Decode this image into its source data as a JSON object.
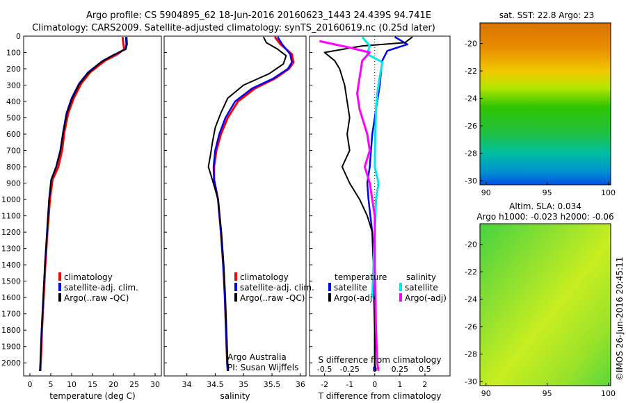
{
  "header": {
    "title_line1": "Argo profile: CS 5904895_62 18-Jun-2016 20160623_1443 24.439S 94.741E",
    "title_line2": "Climatology: CARS2009. Satellite-adjusted climatology: synTS_20160619.nc (0.25d later)"
  },
  "credit": "©IMOS 26-Jun-2016 20:45:11",
  "colors": {
    "climatology": "#ff0000",
    "satellite": "#0000ff",
    "argo": "#000000",
    "sal_satellite": "#00e5ee",
    "sal_argo": "#ff00ff"
  },
  "chart_data": [
    {
      "type": "line",
      "name": "temperature-profile",
      "xlabel": "temperature (deg C)",
      "ylabel": "",
      "xlim": [
        -1.5,
        31.5
      ],
      "ylim": [
        2080,
        0
      ],
      "xticks": [
        0,
        5,
        10,
        15,
        20,
        25,
        30
      ],
      "yticks": [
        0,
        100,
        200,
        300,
        400,
        500,
        600,
        700,
        800,
        900,
        1000,
        1100,
        1200,
        1300,
        1400,
        1500,
        1600,
        1700,
        1800,
        1900,
        2000
      ],
      "legend": [
        "climatology",
        "satellite-adj. clim.",
        "Argo(..raw -QC)"
      ],
      "series": [
        {
          "name": "climatology",
          "points": [
            [
              22.2,
              5
            ],
            [
              22.4,
              50
            ],
            [
              22.6,
              80
            ],
            [
              21.0,
              110
            ],
            [
              18.0,
              150
            ],
            [
              14.5,
              220
            ],
            [
              12.3,
              290
            ],
            [
              10.5,
              380
            ],
            [
              9.2,
              470
            ],
            [
              8.3,
              580
            ],
            [
              7.7,
              700
            ],
            [
              6.8,
              800
            ],
            [
              5.4,
              880
            ],
            [
              4.8,
              1000
            ],
            [
              4.2,
              1200
            ],
            [
              3.7,
              1400
            ],
            [
              3.3,
              1600
            ],
            [
              2.9,
              1800
            ],
            [
              2.6,
              2000
            ],
            [
              2.5,
              2050
            ]
          ]
        },
        {
          "name": "satellite-adj. clim.",
          "points": [
            [
              23.0,
              5
            ],
            [
              23.1,
              50
            ],
            [
              22.9,
              80
            ],
            [
              20.5,
              110
            ],
            [
              17.5,
              150
            ],
            [
              14.0,
              220
            ],
            [
              11.8,
              290
            ],
            [
              10.0,
              380
            ],
            [
              8.8,
              470
            ],
            [
              8.0,
              580
            ],
            [
              7.3,
              700
            ],
            [
              6.3,
              800
            ],
            [
              5.1,
              880
            ],
            [
              4.6,
              1000
            ],
            [
              4.1,
              1200
            ],
            [
              3.6,
              1400
            ],
            [
              3.2,
              1600
            ],
            [
              2.8,
              1800
            ],
            [
              2.5,
              2000
            ],
            [
              2.4,
              2050
            ]
          ]
        },
        {
          "name": "Argo(..raw -QC)",
          "points": [
            [
              23.2,
              5
            ],
            [
              23.3,
              50
            ],
            [
              23.0,
              80
            ],
            [
              20.0,
              115
            ],
            [
              17.0,
              160
            ],
            [
              13.8,
              230
            ],
            [
              11.7,
              300
            ],
            [
              10.0,
              390
            ],
            [
              8.8,
              480
            ],
            [
              8.0,
              590
            ],
            [
              7.3,
              700
            ],
            [
              6.3,
              800
            ],
            [
              5.1,
              880
            ],
            [
              4.6,
              1000
            ],
            [
              4.1,
              1200
            ],
            [
              3.6,
              1400
            ],
            [
              3.2,
              1600
            ],
            [
              2.8,
              1800
            ],
            [
              2.5,
              2000
            ],
            [
              2.4,
              2050
            ]
          ]
        }
      ]
    },
    {
      "type": "line",
      "name": "salinity-profile",
      "xlabel": "salinity",
      "ylabel": "",
      "xlim": [
        33.6,
        36.1
      ],
      "ylim": [
        2080,
        0
      ],
      "xticks": [
        34,
        34.5,
        35,
        35.5,
        36
      ],
      "xtick_labels": [
        "34",
        "34.5",
        "35",
        "35.5",
        "36"
      ],
      "legend": [
        "climatology",
        "satellite-adj. clim.",
        "Argo(..raw -QC)"
      ],
      "annotations": [
        "Argo Australia",
        "PI: Susan Wijffels"
      ],
      "series": [
        {
          "name": "climatology",
          "points": [
            [
              35.55,
              5
            ],
            [
              35.65,
              50
            ],
            [
              35.85,
              110
            ],
            [
              35.88,
              160
            ],
            [
              35.8,
              200
            ],
            [
              35.55,
              260
            ],
            [
              35.2,
              320
            ],
            [
              34.9,
              400
            ],
            [
              34.72,
              500
            ],
            [
              34.6,
              600
            ],
            [
              34.52,
              700
            ],
            [
              34.48,
              800
            ],
            [
              34.48,
              880
            ],
            [
              34.55,
              1000
            ],
            [
              34.6,
              1200
            ],
            [
              34.64,
              1400
            ],
            [
              34.67,
              1600
            ],
            [
              34.69,
              1800
            ],
            [
              34.71,
              2000
            ],
            [
              34.72,
              2050
            ]
          ]
        },
        {
          "name": "satellite-adj. clim.",
          "points": [
            [
              35.6,
              5
            ],
            [
              35.68,
              50
            ],
            [
              35.82,
              110
            ],
            [
              35.85,
              160
            ],
            [
              35.78,
              200
            ],
            [
              35.52,
              260
            ],
            [
              35.15,
              320
            ],
            [
              34.85,
              400
            ],
            [
              34.68,
              500
            ],
            [
              34.57,
              600
            ],
            [
              34.5,
              700
            ],
            [
              34.47,
              800
            ],
            [
              34.48,
              880
            ],
            [
              34.55,
              1000
            ],
            [
              34.6,
              1200
            ],
            [
              34.64,
              1400
            ],
            [
              34.67,
              1600
            ],
            [
              34.69,
              1800
            ],
            [
              34.71,
              2000
            ],
            [
              34.72,
              2050
            ]
          ]
        },
        {
          "name": "Argo(..raw -QC)",
          "points": [
            [
              35.35,
              5
            ],
            [
              35.4,
              40
            ],
            [
              35.6,
              80
            ],
            [
              35.75,
              120
            ],
            [
              35.7,
              170
            ],
            [
              35.45,
              230
            ],
            [
              35.0,
              300
            ],
            [
              34.72,
              380
            ],
            [
              34.6,
              470
            ],
            [
              34.5,
              560
            ],
            [
              34.45,
              650
            ],
            [
              34.42,
              720
            ],
            [
              34.38,
              800
            ],
            [
              34.45,
              880
            ],
            [
              34.55,
              1000
            ],
            [
              34.61,
              1200
            ],
            [
              34.65,
              1400
            ],
            [
              34.68,
              1600
            ],
            [
              34.7,
              1800
            ],
            [
              34.72,
              2000
            ],
            [
              34.73,
              2050
            ]
          ]
        }
      ]
    },
    {
      "type": "line",
      "name": "difference-profile",
      "xlabel": "T difference from climatology",
      "x2label": "S difference from climatology",
      "ylabel": "",
      "xlim": [
        -2.6,
        3.0
      ],
      "ylim": [
        2080,
        0
      ],
      "xticks": [
        -2,
        -1,
        0,
        1,
        2
      ],
      "x2ticks": [
        -0.5,
        -0.25,
        0,
        0.25,
        0.5
      ],
      "x2tick_labels": [
        "-0.5",
        "-0.25",
        "0",
        "0.25",
        "0.5"
      ],
      "legend": [
        "temperature",
        "satellite",
        "Argo(-adj)",
        "salinity",
        "satellite",
        "Argo(-adj)"
      ],
      "series": [
        {
          "name": "T satellite",
          "points": [
            [
              0.8,
              5
            ],
            [
              1.3,
              50
            ],
            [
              0.5,
              90
            ],
            [
              0.3,
              150
            ],
            [
              0.25,
              220
            ],
            [
              0.2,
              300
            ],
            [
              0.1,
              400
            ],
            [
              0.0,
              500
            ],
            [
              -0.1,
              600
            ],
            [
              -0.15,
              700
            ],
            [
              -0.2,
              800
            ],
            [
              -0.3,
              900
            ],
            [
              -0.25,
              1000
            ],
            [
              -0.1,
              1200
            ],
            [
              -0.05,
              1400
            ],
            [
              -0.03,
              1600
            ],
            [
              0.0,
              1800
            ],
            [
              0.0,
              2000
            ],
            [
              0.0,
              2050
            ]
          ]
        },
        {
          "name": "T Argo(-adj)",
          "points": [
            [
              1.5,
              5
            ],
            [
              1.2,
              40
            ],
            [
              -0.5,
              60
            ],
            [
              -2.0,
              100
            ],
            [
              -1.6,
              150
            ],
            [
              -1.4,
              200
            ],
            [
              -1.2,
              300
            ],
            [
              -1.1,
              400
            ],
            [
              -1.0,
              500
            ],
            [
              -1.1,
              600
            ],
            [
              -1.0,
              700
            ],
            [
              -1.3,
              800
            ],
            [
              -1.0,
              900
            ],
            [
              -0.6,
              1000
            ],
            [
              -0.3,
              1100
            ],
            [
              -0.1,
              1200
            ],
            [
              -0.05,
              1400
            ],
            [
              0.0,
              1600
            ],
            [
              0.0,
              1800
            ],
            [
              0.0,
              2000
            ],
            [
              0.05,
              2050
            ]
          ]
        },
        {
          "name": "S satellite",
          "points": [
            [
              -0.5,
              5
            ],
            [
              -0.2,
              60
            ],
            [
              -0.3,
              110
            ],
            [
              0.3,
              160
            ],
            [
              0.2,
              250
            ],
            [
              0.1,
              350
            ],
            [
              0.05,
              450
            ],
            [
              0.02,
              600
            ],
            [
              0.0,
              800
            ],
            [
              0.15,
              900
            ],
            [
              0.05,
              1000
            ],
            [
              0.0,
              1200
            ],
            [
              -0.05,
              1400
            ],
            [
              -0.1,
              1600
            ]
          ]
        },
        {
          "name": "S Argo(-adj)",
          "points": [
            [
              -2.2,
              30
            ],
            [
              -1.0,
              70
            ],
            [
              -0.2,
              100
            ],
            [
              -0.5,
              150
            ],
            [
              -0.6,
              250
            ],
            [
              -0.7,
              350
            ],
            [
              -0.6,
              450
            ],
            [
              -0.3,
              600
            ],
            [
              -0.2,
              700
            ],
            [
              -0.4,
              800
            ],
            [
              -0.2,
              900
            ],
            [
              0.0,
              1100
            ],
            [
              0.0,
              1400
            ],
            [
              0.05,
              1800
            ],
            [
              0.1,
              2000
            ],
            [
              0.15,
              2050
            ]
          ]
        }
      ]
    },
    {
      "type": "heatmap",
      "name": "sst-map",
      "title": "sat. SST: 22.8  Argo: 23",
      "xlim": [
        89.5,
        100.2
      ],
      "ylim": [
        -30.3,
        -18.5
      ],
      "xticks": [
        90,
        95,
        100
      ],
      "yticks": [
        -20,
        -22,
        -24,
        -26,
        -28,
        -30
      ]
    },
    {
      "type": "heatmap",
      "name": "sla-map",
      "title": "Altim. SLA: 0.034",
      "subtitle": "Argo h1000: -0.023  h2000: -0.06",
      "xlim": [
        89.5,
        100.2
      ],
      "ylim": [
        -30.3,
        -18.5
      ],
      "xticks": [
        90,
        95,
        100
      ],
      "yticks": [
        -20,
        -22,
        -24,
        -26,
        -28,
        -30
      ]
    }
  ]
}
